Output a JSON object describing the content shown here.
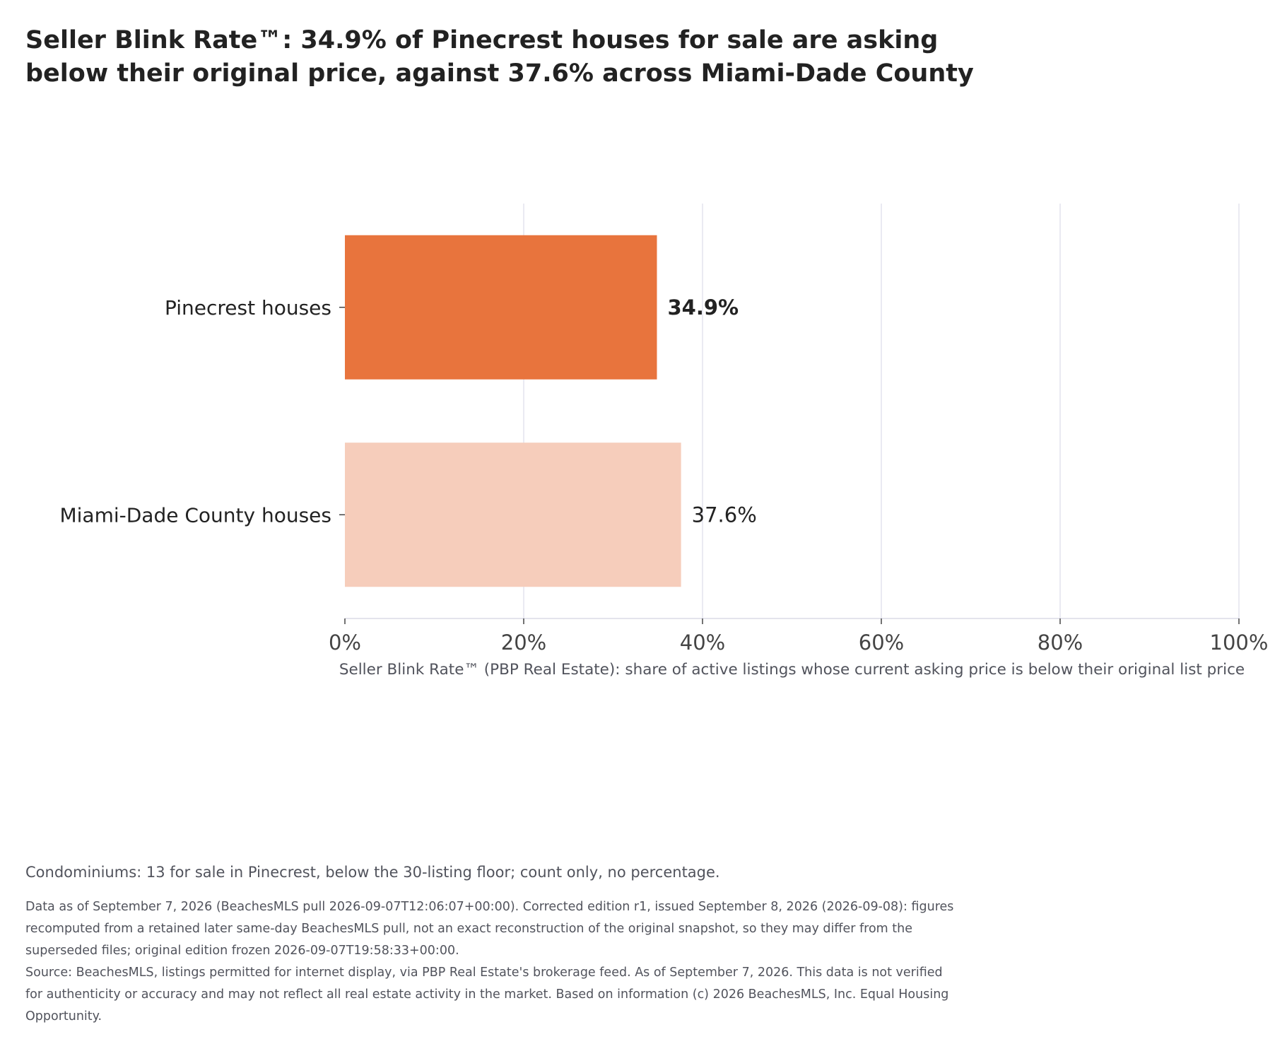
{
  "title": {
    "line1": "Seller Blink Rate™: 34.9% of Pinecrest houses for sale are asking",
    "line2": "below their original price, against 37.6% across Miami-Dade County"
  },
  "chart_data": {
    "type": "bar",
    "orientation": "horizontal",
    "categories": [
      "Pinecrest houses",
      "Miami-Dade County houses"
    ],
    "values": [
      34.9,
      37.6
    ],
    "value_labels": [
      "34.9%",
      "37.6%"
    ],
    "bar_colors": [
      "#e8743d",
      "#f6cdbb"
    ],
    "xlabel": "Seller Blink Rate™ (PBP Real Estate): share of active listings whose current asking price is below their original list price",
    "xlim": [
      0,
      100
    ],
    "xticks": [
      0,
      20,
      40,
      60,
      80,
      100
    ],
    "xtick_labels": [
      "0%",
      "20%",
      "40%",
      "60%",
      "80%",
      "100%"
    ],
    "grid": true,
    "gridline_color": "#e3e3ee"
  },
  "note": "Condominiums: 13 for sale in Pinecrest, below the 30-listing floor; count only, no percentage.",
  "footer": {
    "line1": "Data as of September 7, 2026 (BeachesMLS pull 2026-09-07T12:06:07+00:00). Corrected edition r1, issued September 8, 2026 (2026-09-08): figures",
    "line2": "recomputed from a retained later same-day BeachesMLS pull, not an exact reconstruction of the original snapshot, so they may differ from the",
    "line3": "superseded files; original edition frozen 2026-09-07T19:58:33+00:00.",
    "line4": "Source: BeachesMLS, listings permitted for internet display, via PBP Real Estate's brokerage feed. As of September 7, 2026. This data is not verified",
    "line5": "for authenticity or accuracy and may not reflect all real estate activity in the market. Based on information (c) 2026 BeachesMLS, Inc. Equal Housing",
    "line6": "Opportunity."
  }
}
